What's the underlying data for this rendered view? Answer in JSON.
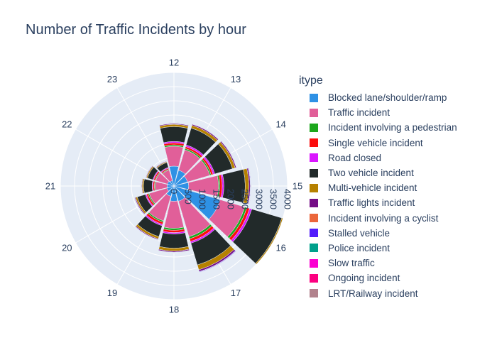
{
  "title": "Number of Traffic Incidents by hour",
  "legend": {
    "title": "itype"
  },
  "chart_data": {
    "type": "barpolar",
    "title": "Number of Traffic Incidents by hour",
    "angular_axis": {
      "categories": [
        "12",
        "13",
        "14",
        "15",
        "16",
        "17",
        "18",
        "19",
        "20",
        "21",
        "22",
        "23"
      ],
      "direction": "clockwise",
      "first_category_at": "top"
    },
    "radial_axis": {
      "range": [
        0,
        4000
      ],
      "ticks": [
        0,
        500,
        1000,
        1500,
        2000,
        2500,
        3000,
        3500,
        4000
      ],
      "tick_labels": [
        "0",
        "500",
        "1000",
        "1500",
        "2000",
        "2500",
        "3000",
        "3500",
        "4000"
      ],
      "angle_deg": 90
    },
    "grid": true,
    "legend_position": "right",
    "series": [
      {
        "name": "Blocked lane/shoulder/ramp",
        "color": "#2e91e5",
        "values": [
          700,
          580,
          500,
          520,
          1700,
          560,
          540,
          380,
          260,
          240,
          240,
          200
        ]
      },
      {
        "name": "Traffic incident",
        "color": "#e15f99",
        "values": [
          700,
          750,
          820,
          1050,
          900,
          1300,
          950,
          900,
          650,
          420,
          430,
          390
        ]
      },
      {
        "name": "Incident involving a pedestrian",
        "color": "#1ca71c",
        "values": [
          50,
          50,
          50,
          50,
          80,
          80,
          70,
          50,
          40,
          30,
          25,
          25
        ]
      },
      {
        "name": "Single vehicle incident",
        "color": "#fb0d0d",
        "values": [
          70,
          70,
          70,
          80,
          100,
          100,
          80,
          80,
          60,
          50,
          50,
          40
        ]
      },
      {
        "name": "Road closed",
        "color": "#da16ff",
        "values": [
          50,
          60,
          60,
          60,
          80,
          60,
          50,
          50,
          40,
          30,
          30,
          30
        ]
      },
      {
        "name": "Two vehicle incident",
        "color": "#222a2a",
        "values": [
          520,
          620,
          650,
          750,
          1100,
          800,
          500,
          400,
          300,
          300,
          200,
          180
        ]
      },
      {
        "name": "Multi-vehicle incident",
        "color": "#b68100",
        "values": [
          80,
          100,
          100,
          130,
          180,
          180,
          100,
          80,
          60,
          50,
          40,
          30
        ]
      },
      {
        "name": "Traffic lights incident",
        "color": "#750d86",
        "values": [
          30,
          40,
          40,
          50,
          60,
          60,
          40,
          30,
          30,
          20,
          20,
          20
        ]
      },
      {
        "name": "Incident involving a cyclist",
        "color": "#eb663b",
        "values": [
          5,
          5,
          5,
          5,
          5,
          5,
          5,
          5,
          5,
          5,
          5,
          5
        ]
      },
      {
        "name": "Stalled vehicle",
        "color": "#511cfb",
        "values": [
          10,
          10,
          10,
          15,
          20,
          20,
          10,
          10,
          10,
          5,
          5,
          5
        ]
      },
      {
        "name": "Police incident",
        "color": "#00a08b",
        "values": [
          5,
          5,
          5,
          5,
          5,
          5,
          5,
          5,
          5,
          5,
          5,
          5
        ]
      },
      {
        "name": "Slow traffic",
        "color": "#fb00d1",
        "values": [
          5,
          5,
          5,
          5,
          5,
          5,
          5,
          5,
          5,
          5,
          5,
          5
        ]
      },
      {
        "name": "Ongoing incident",
        "color": "#fc0080",
        "values": [
          5,
          5,
          5,
          5,
          5,
          5,
          5,
          5,
          5,
          5,
          5,
          5
        ]
      },
      {
        "name": "LRT/Railway incident",
        "color": "#b2828d",
        "values": [
          2,
          2,
          2,
          2,
          2,
          2,
          2,
          2,
          2,
          2,
          2,
          2
        ]
      }
    ]
  }
}
